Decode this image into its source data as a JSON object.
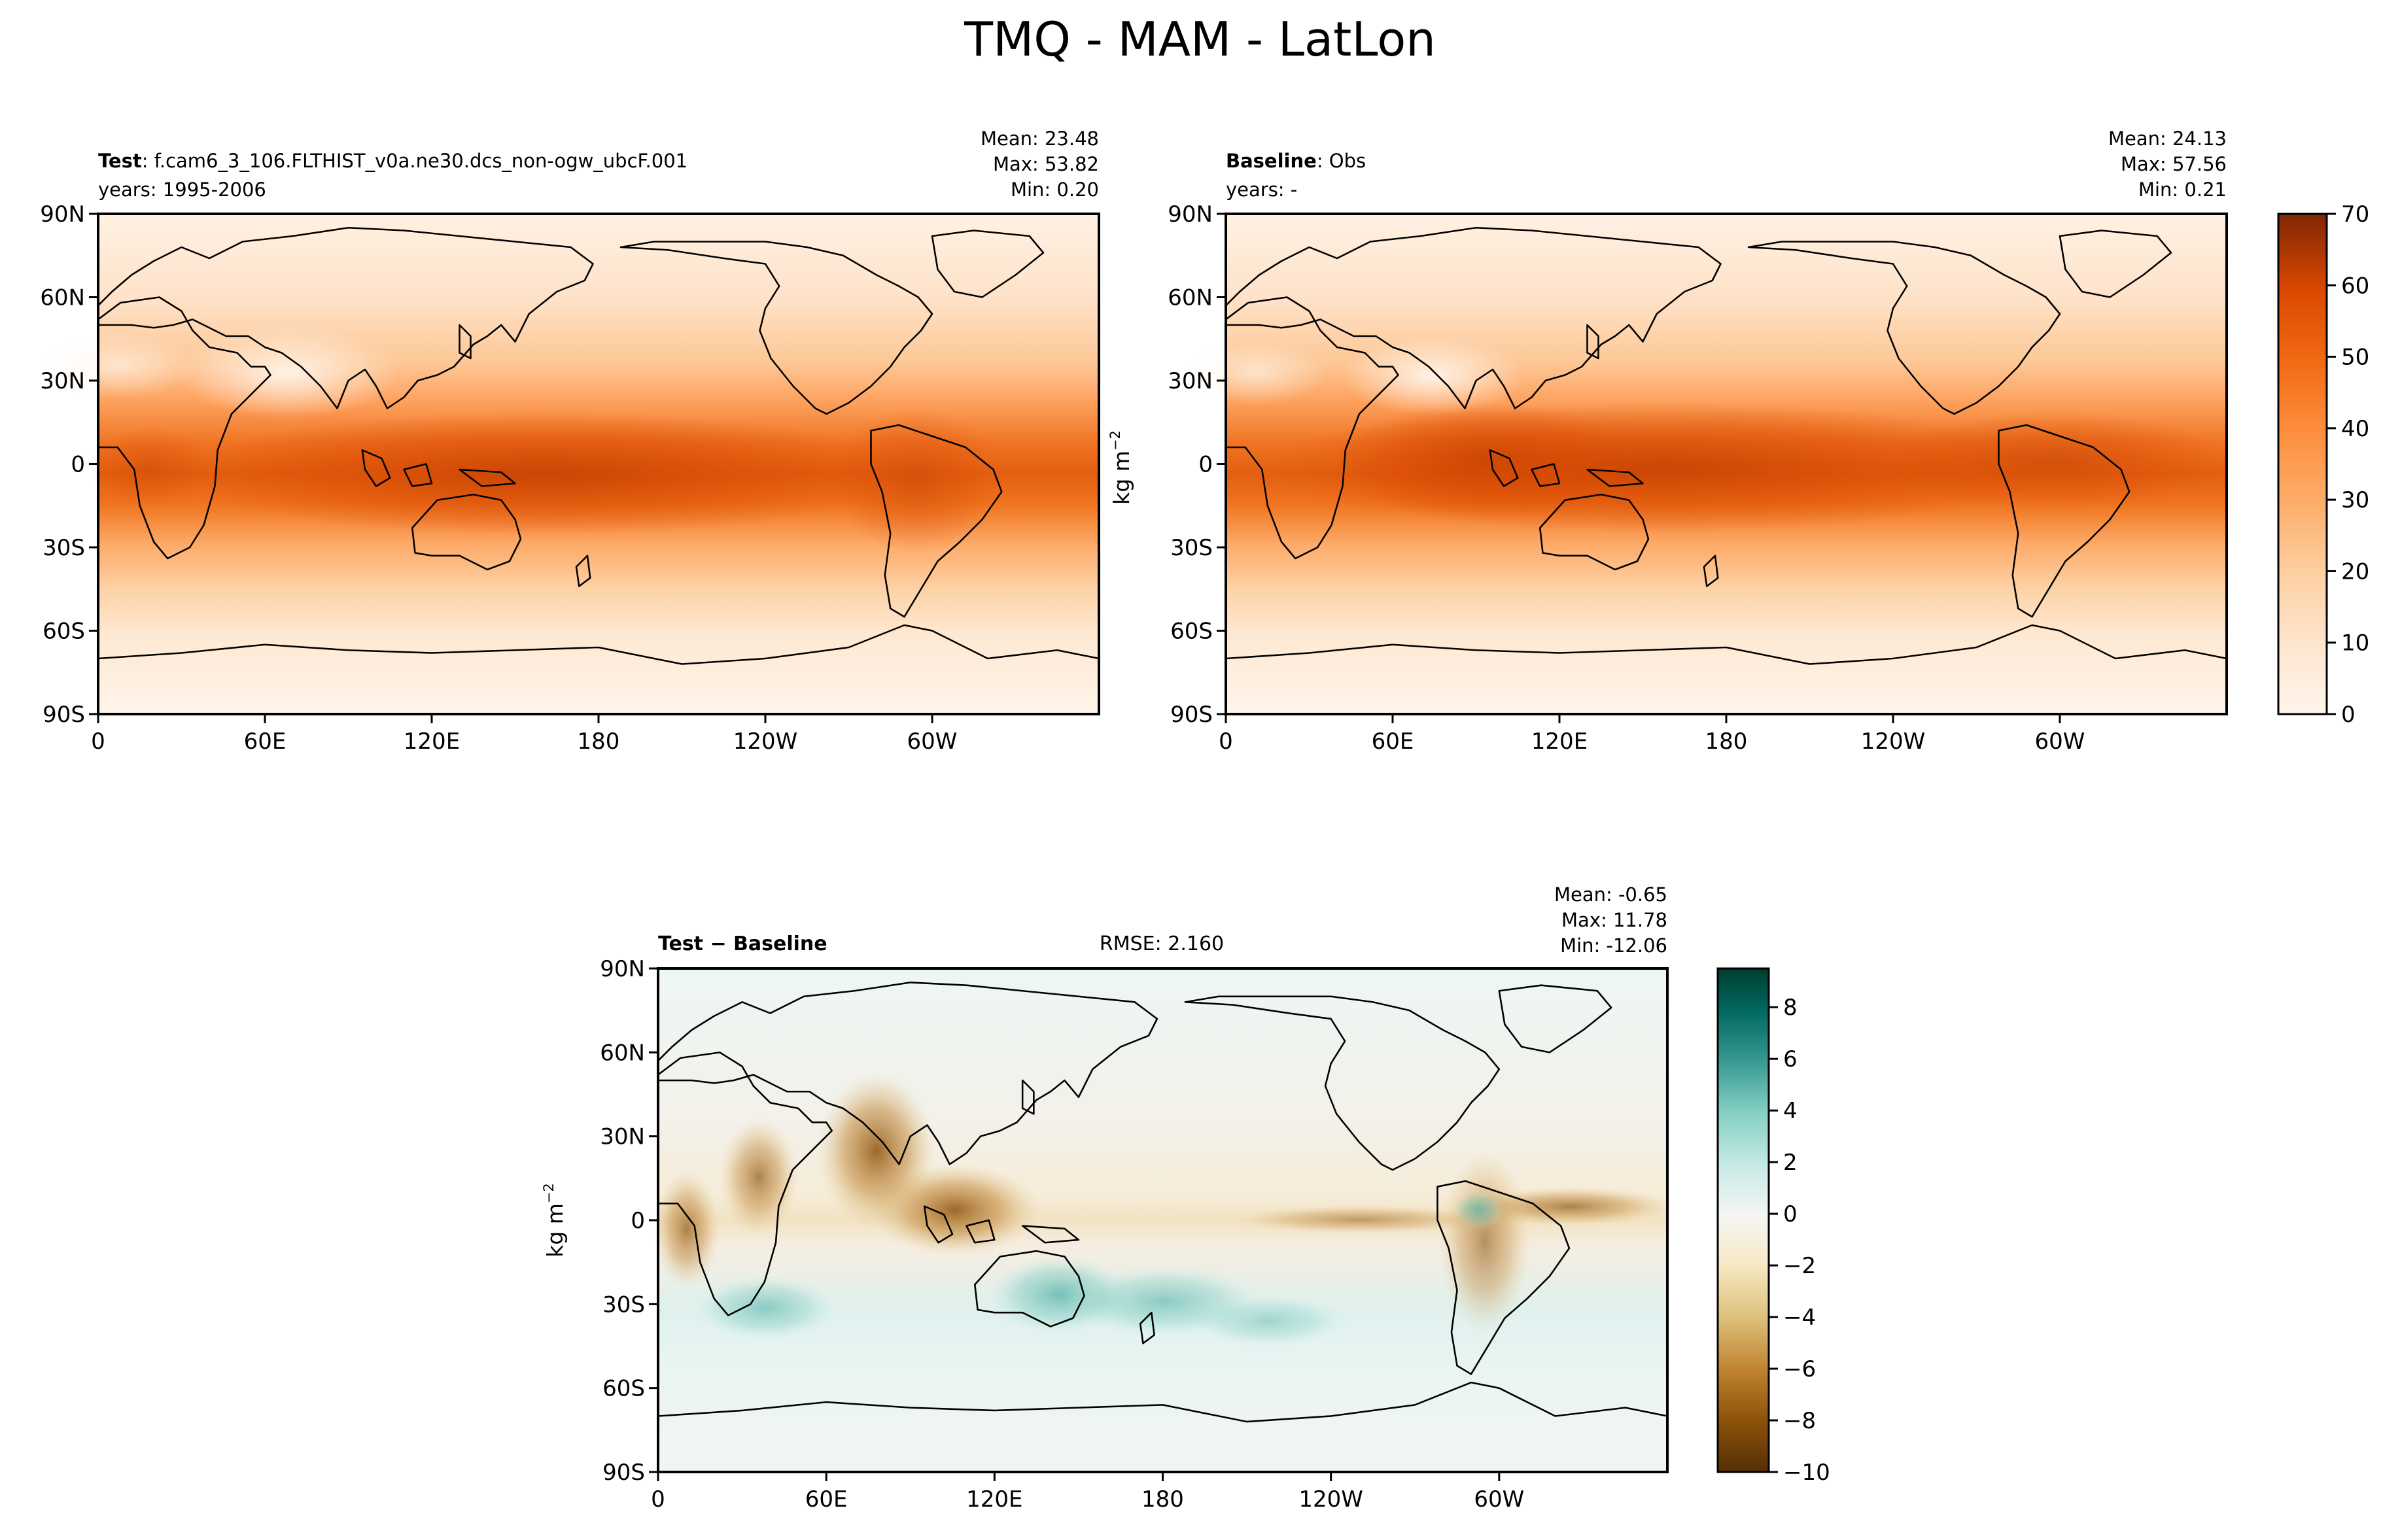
{
  "figure": {
    "title": "TMQ - MAM - LatLon"
  },
  "chart_data": [
    {
      "type": "heatmap",
      "id": "test",
      "panel_label_bold": "Test",
      "panel_label_rest": ": f.cam6_3_106.FLTHIST_v0a.ne30.dcs_non-ogw_ubcF.001",
      "years": "years: 1995-2006",
      "stats": [
        "Mean: 23.48",
        "Max: 53.82",
        "Min:  0.20"
      ],
      "xticks": [
        "0",
        "60E",
        "120E",
        "180",
        "120W",
        "60W"
      ],
      "yticks": [
        "90N",
        "60N",
        "30N",
        "0",
        "30S",
        "60S",
        "90S"
      ],
      "xlim": [
        0,
        360
      ],
      "ylim": [
        -90,
        90
      ],
      "colormap": "Oranges",
      "value_range": [
        0,
        70
      ]
    },
    {
      "type": "heatmap",
      "id": "baseline",
      "panel_label_bold": "Baseline",
      "panel_label_rest": ": Obs",
      "years": "years: -",
      "stats": [
        "Mean: 24.13",
        "Max: 57.56",
        "Min:  0.21"
      ],
      "xticks": [
        "0",
        "60E",
        "120E",
        "180",
        "120W",
        "60W"
      ],
      "yticks": [
        "90N",
        "60N",
        "30N",
        "0",
        "30S",
        "60S",
        "90S"
      ],
      "ylabel": "kg m",
      "ylabel_exp": "−2",
      "xlim": [
        0,
        360
      ],
      "ylim": [
        -90,
        90
      ],
      "colorbar": {
        "ticks": [
          0,
          10,
          20,
          30,
          40,
          50,
          60,
          70
        ],
        "labels": [
          "0",
          "10",
          "20",
          "30",
          "40",
          "50",
          "60",
          "70"
        ],
        "colors": [
          "#fff5eb",
          "#fee6ce",
          "#fdd0a2",
          "#fdae6b",
          "#fd8d3c",
          "#f16913",
          "#d94801",
          "#a63603",
          "#7f2704"
        ]
      }
    },
    {
      "type": "heatmap",
      "id": "diff",
      "panel_label": "Test − Baseline",
      "rmse": "RMSE: 2.160",
      "stats": [
        "Mean: -0.65",
        "Max: 11.78",
        "Min: -12.06"
      ],
      "xticks": [
        "0",
        "60E",
        "120E",
        "180",
        "120W",
        "60W"
      ],
      "yticks": [
        "90N",
        "60N",
        "30N",
        "0",
        "30S",
        "60S",
        "90S"
      ],
      "ylabel": "kg m",
      "ylabel_exp": "−2",
      "xlim": [
        0,
        360
      ],
      "ylim": [
        -90,
        90
      ],
      "colorbar": {
        "ticks": [
          -10,
          -8,
          -6,
          -4,
          -2,
          0,
          2,
          4,
          6,
          8
        ],
        "labels": [
          "−10",
          "−8",
          "−6",
          "−4",
          "−2",
          "0",
          "2",
          "4",
          "6",
          "8"
        ],
        "range": [
          -10,
          9.5
        ],
        "colors": [
          "#543005",
          "#8c510a",
          "#bf812d",
          "#dfc27d",
          "#f6e8c3",
          "#f5f5f5",
          "#c7eae5",
          "#80cdc1",
          "#35978f",
          "#01665e",
          "#003c30"
        ]
      }
    }
  ]
}
